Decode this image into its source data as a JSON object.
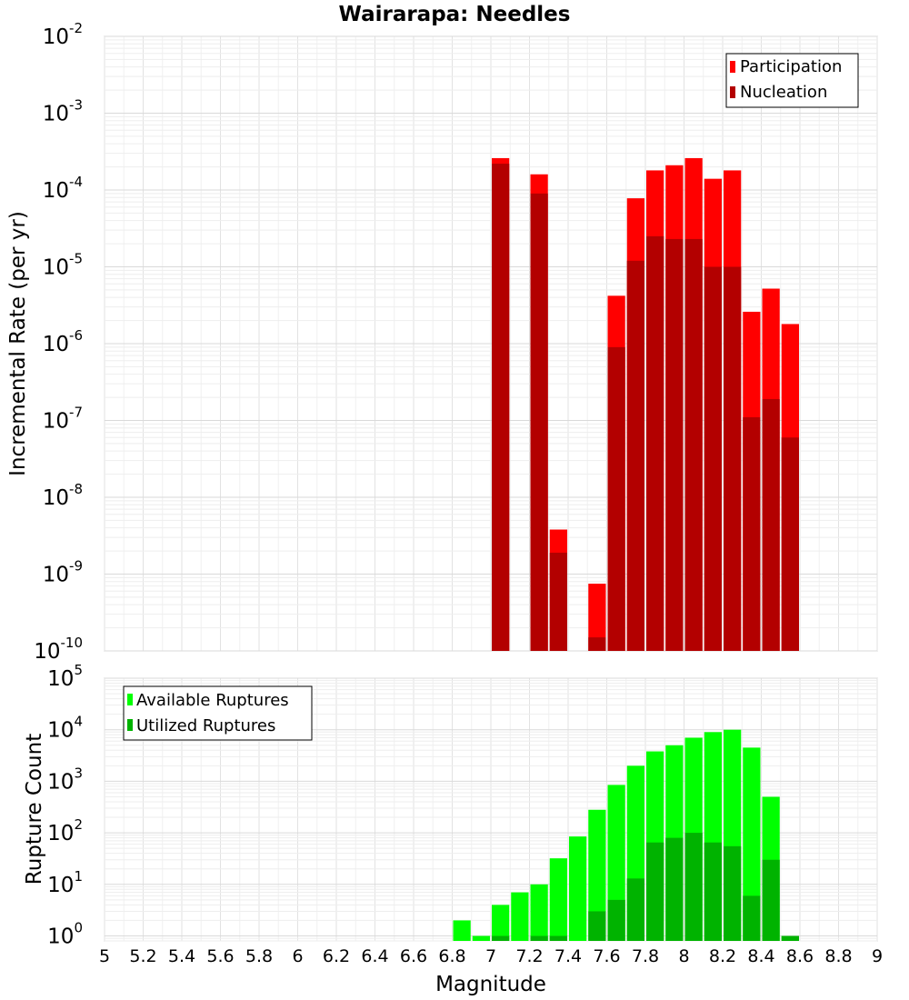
{
  "chart_data": [
    {
      "type": "bar",
      "title": "Wairarapa: Needles",
      "xlabel": "",
      "ylabel": "Incremental Rate (per yr)",
      "yscale": "log",
      "xlim": [
        5,
        9
      ],
      "ylim": [
        1e-10,
        0.01
      ],
      "y_tick_exponents": [
        -10,
        -9,
        -8,
        -7,
        -6,
        -5,
        -4,
        -3,
        -2
      ],
      "legend_position": "top-right",
      "x": [
        7.05,
        7.25,
        7.35,
        7.55,
        7.65,
        7.75,
        7.85,
        7.95,
        8.05,
        8.15,
        8.25,
        8.35,
        8.45,
        8.55
      ],
      "series": [
        {
          "name": "Participation",
          "color": "#ff0000",
          "values": [
            0.00026,
            0.00016,
            3.8e-09,
            7.5e-10,
            4.2e-06,
            7.8e-05,
            0.00018,
            0.00021,
            0.00026,
            0.00014,
            0.00018,
            2.6e-06,
            5.2e-06,
            1.8e-06
          ]
        },
        {
          "name": "Nucleation",
          "color": "#b30000",
          "values": [
            0.00022,
            9e-05,
            1.9e-09,
            1.5e-10,
            9e-07,
            1.2e-05,
            2.5e-05,
            2.3e-05,
            2.3e-05,
            1e-05,
            1e-05,
            1.1e-07,
            1.9e-07,
            6e-08
          ]
        }
      ]
    },
    {
      "type": "bar",
      "xlabel": "Magnitude",
      "ylabel": "Rupture Count",
      "yscale": "log",
      "xlim": [
        5,
        9
      ],
      "ylim": [
        0.8,
        100000.0
      ],
      "y_tick_exponents": [
        0,
        1,
        2,
        3,
        4,
        5
      ],
      "legend_position": "top-left",
      "x_ticks": [
        "5",
        "5.2",
        "5.4",
        "5.6",
        "5.8",
        "6",
        "6.2",
        "6.4",
        "6.6",
        "6.8",
        "7",
        "7.2",
        "7.4",
        "7.6",
        "7.8",
        "8",
        "8.2",
        "8.4",
        "8.6",
        "8.8",
        "9"
      ],
      "x": [
        6.85,
        6.95,
        7.05,
        7.15,
        7.25,
        7.35,
        7.45,
        7.55,
        7.65,
        7.75,
        7.85,
        7.95,
        8.05,
        8.15,
        8.25,
        8.35,
        8.45,
        8.55
      ],
      "series": [
        {
          "name": "Available Ruptures",
          "color": "#00ff00",
          "values": [
            2,
            1,
            4,
            7,
            10,
            32,
            85,
            280,
            850,
            2000,
            3800,
            5000,
            7000,
            9000,
            10000,
            4500,
            500,
            1
          ]
        },
        {
          "name": "Utilized Ruptures",
          "color": "#00b300",
          "values": [
            0,
            0,
            1,
            0,
            1,
            1,
            0,
            3,
            5,
            13,
            65,
            80,
            100,
            65,
            55,
            6,
            30,
            1
          ]
        }
      ]
    }
  ]
}
